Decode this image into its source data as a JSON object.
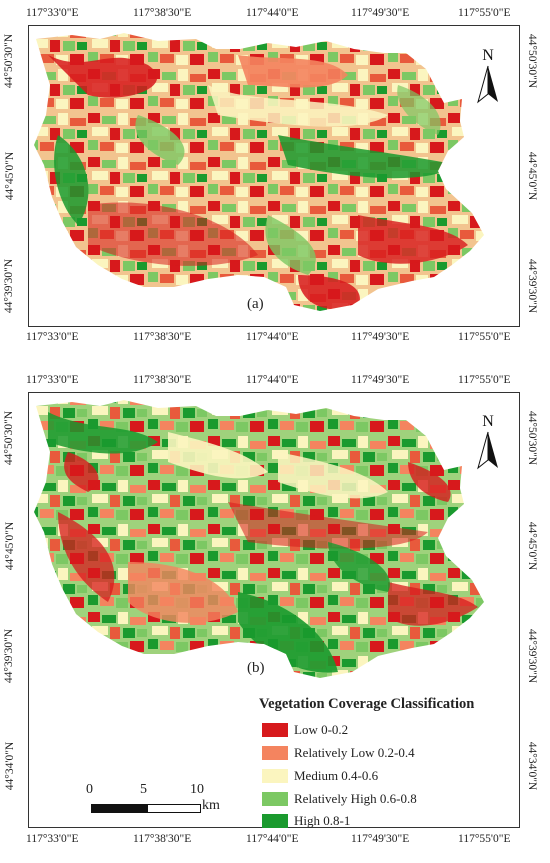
{
  "longitudes": [
    "117°33'0\"E",
    "117°38'30\"E",
    "117°44'0\"E",
    "117°49'30\"E",
    "117°55'0\"E"
  ],
  "lat_top": [
    "44°50'30\"N",
    "44°45'0\"N",
    "44°39'30\"N"
  ],
  "lat_bottom": [
    "44°50'30\"N",
    "44°45'0\"N",
    "44°39'30\"N",
    "44°34'0\"N"
  ],
  "panel_a_label": "(a)",
  "panel_b_label": "(b)",
  "north_label": "N",
  "legend": {
    "title": "Vegetation Coverage Classification",
    "items": [
      {
        "label": "Low 0-0.2",
        "color": "#d7191c"
      },
      {
        "label": "Relatively Low 0.2-0.4",
        "color": "#f4845f"
      },
      {
        "label": "Medium 0.4-0.6",
        "color": "#fbf5bf"
      },
      {
        "label": "Relatively High 0.6-0.8",
        "color": "#7cc863"
      },
      {
        "label": "High 0.8-1",
        "color": "#1a9a2e"
      }
    ]
  },
  "scale_bar": {
    "ticks": [
      "0",
      "5",
      "10"
    ],
    "unit": "km"
  }
}
